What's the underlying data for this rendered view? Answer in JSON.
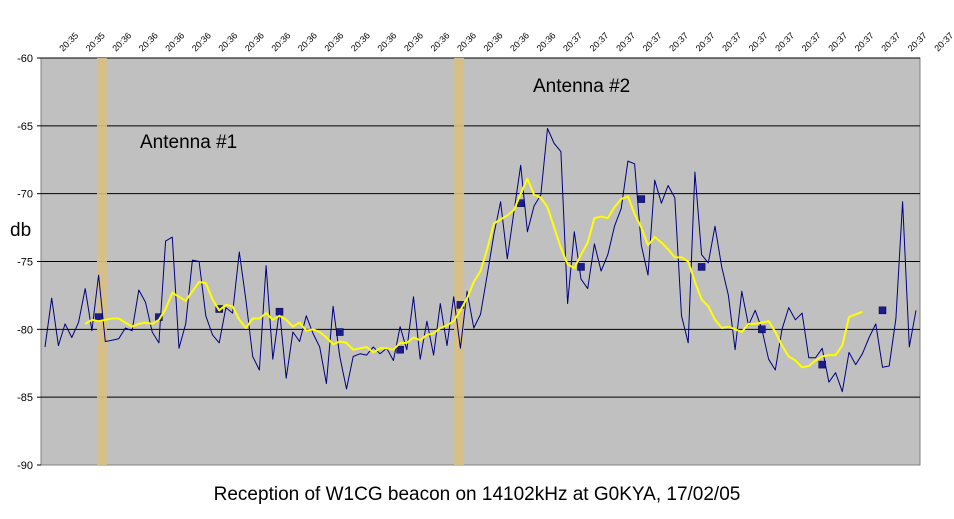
{
  "chart_data": {
    "type": "line",
    "title": "Reception of W1CG beacon on 14102kHz at G0KYA, 17/02/05",
    "xlabel": "",
    "ylabel": "db",
    "ylim": [
      -90,
      -60
    ],
    "yticks": [
      "-60",
      "-65",
      "-70",
      "-75",
      "-80",
      "-85",
      "-90"
    ],
    "grid": true,
    "plot_background": "#c0c0c0",
    "x_tick_labels": [
      "20:35",
      "20:35",
      "20:36",
      "20:36",
      "20:36",
      "20:36",
      "20:36",
      "20:36",
      "20:36",
      "20:36",
      "20:36",
      "20:36",
      "20:36",
      "20:36",
      "20:36",
      "20:36",
      "20:36",
      "20:36",
      "20:36",
      "20:37",
      "20:37",
      "20:37",
      "20:37",
      "20:37",
      "20:37",
      "20:37",
      "20:37",
      "20:37",
      "20:37",
      "20:37",
      "20:37",
      "20:37",
      "20:37",
      "20:37"
    ],
    "annotations": [
      {
        "text": "Antenna #1",
        "sample": 11
      },
      {
        "text": "Antenna #2",
        "sample": 80
      }
    ],
    "series": [
      {
        "color": "#000080",
        "values": [
          -81.3,
          -77.7,
          -81.2,
          -79.6,
          -80.6,
          -79.5,
          -77.0,
          -80.1,
          -76.0,
          -80.9,
          -80.8,
          -80.7,
          -79.9,
          -80.1,
          -77.1,
          -78.0,
          -80.2,
          -81.0,
          -73.5,
          -73.2,
          -81.4,
          -79.6,
          -74.9,
          -75.0,
          -79.0,
          -80.4,
          -81.0,
          -78.4,
          -78.8,
          -74.3,
          -77.9,
          -82.0,
          -83.0,
          -75.3,
          -82.2,
          -78.6,
          -83.6,
          -80.2,
          -80.9,
          -79.0,
          -80.3,
          -81.3,
          -84.0,
          -78.3,
          -82.0,
          -84.4,
          -82.0,
          -81.8,
          -81.9,
          -81.3,
          -81.8,
          -81.4,
          -82.3,
          -79.8,
          -81.5,
          -77.6,
          -82.2,
          -79.4,
          -81.9,
          -78.1,
          -81.2,
          -77.6,
          -81.4,
          -77.2,
          -79.9,
          -78.9,
          -76.0,
          -73.0,
          -70.6,
          -74.8,
          -71.3,
          -67.9,
          -72.8,
          -70.9,
          -70.1,
          -65.2,
          -66.3,
          -66.9,
          -78.1,
          -72.8,
          -76.3,
          -77.0,
          -73.7,
          -75.7,
          -74.5,
          -72.4,
          -71.1,
          -67.6,
          -67.8,
          -73.8,
          -76.0,
          -69.0,
          -70.7,
          -69.4,
          -70.3,
          -79.0,
          -81.0,
          -68.4,
          -74.5,
          -75.1,
          -72.4,
          -75.4,
          -77.5,
          -81.5,
          -77.2,
          -79.7,
          -78.6,
          -80.0,
          -82.2,
          -83.0,
          -80.0,
          -78.4,
          -79.3,
          -78.8,
          -82.1,
          -82.1,
          -81.4,
          -83.9,
          -83.2,
          -84.6,
          -81.7,
          -82.6,
          -81.8,
          -80.6,
          -79.6,
          -82.8,
          -82.7,
          -79.2,
          -70.6,
          -81.3,
          -78.6
        ],
        "markers": [
          {
            "index": 8,
            "value": -79.1
          },
          {
            "index": 17,
            "value": -79.1
          },
          {
            "index": 26,
            "value": -78.5
          },
          {
            "index": 35,
            "value": -78.7
          },
          {
            "index": 44,
            "value": -80.2
          },
          {
            "index": 53,
            "value": -81.5
          },
          {
            "index": 62,
            "value": -78.2
          },
          {
            "index": 71,
            "value": -70.7
          },
          {
            "index": 80,
            "value": -75.4
          },
          {
            "index": 89,
            "value": -70.4
          },
          {
            "index": 98,
            "value": -75.4
          },
          {
            "index": 107,
            "value": -80.0
          },
          {
            "index": 116,
            "value": -82.6
          },
          {
            "index": 125,
            "value": -78.6
          }
        ]
      },
      {
        "color": "#ffff00",
        "values": [
          null,
          null,
          null,
          null,
          null,
          null,
          -79.6,
          -79.3,
          -79.4,
          -79.3,
          -79.2,
          -79.2,
          -79.5,
          -79.8,
          -79.6,
          -79.5,
          -79.6,
          -79.3,
          -78.5,
          -77.3,
          -77.6,
          -77.9,
          -77.2,
          -76.5,
          -76.6,
          -77.8,
          -78.6,
          -78.2,
          -78.3,
          -79.3,
          -79.9,
          -79.2,
          -79.2,
          -78.8,
          -79.3,
          -79.0,
          -79.3,
          -79.8,
          -79.5,
          -80.1,
          -80.0,
          -80.2,
          -80.6,
          -81.1,
          -80.9,
          -81.0,
          -81.5,
          -81.4,
          -81.3,
          -81.7,
          -81.4,
          -81.4,
          -81.5,
          -81.0,
          -81.0,
          -80.6,
          -80.8,
          -80.4,
          -80.3,
          -79.9,
          -79.7,
          -79.4,
          -78.6,
          -77.7,
          -76.5,
          -75.7,
          -74.1,
          -72.2,
          -71.9,
          -71.6,
          -71.2,
          -70.0,
          -68.9,
          -70.1,
          -70.3,
          -71.0,
          -72.5,
          -74.0,
          -75.2,
          -75.5,
          -74.5,
          -73.6,
          -71.8,
          -71.7,
          -71.8,
          -71.0,
          -70.4,
          -70.2,
          -71.5,
          -72.5,
          -73.8,
          -73.2,
          -73.6,
          -74.1,
          -74.7,
          -74.7,
          -75.0,
          -76.5,
          -77.8,
          -78.3,
          -79.3,
          -79.9,
          -79.8,
          -80.0,
          -80.2,
          -79.6,
          -79.6,
          -79.5,
          -79.4,
          -80.2,
          -81.2,
          -82.0,
          -82.3,
          -82.8,
          -82.7,
          -82.3,
          -82.0,
          -81.9,
          -81.9,
          -81.2,
          -79.1,
          -78.9,
          -78.7
        ]
      }
    ]
  }
}
